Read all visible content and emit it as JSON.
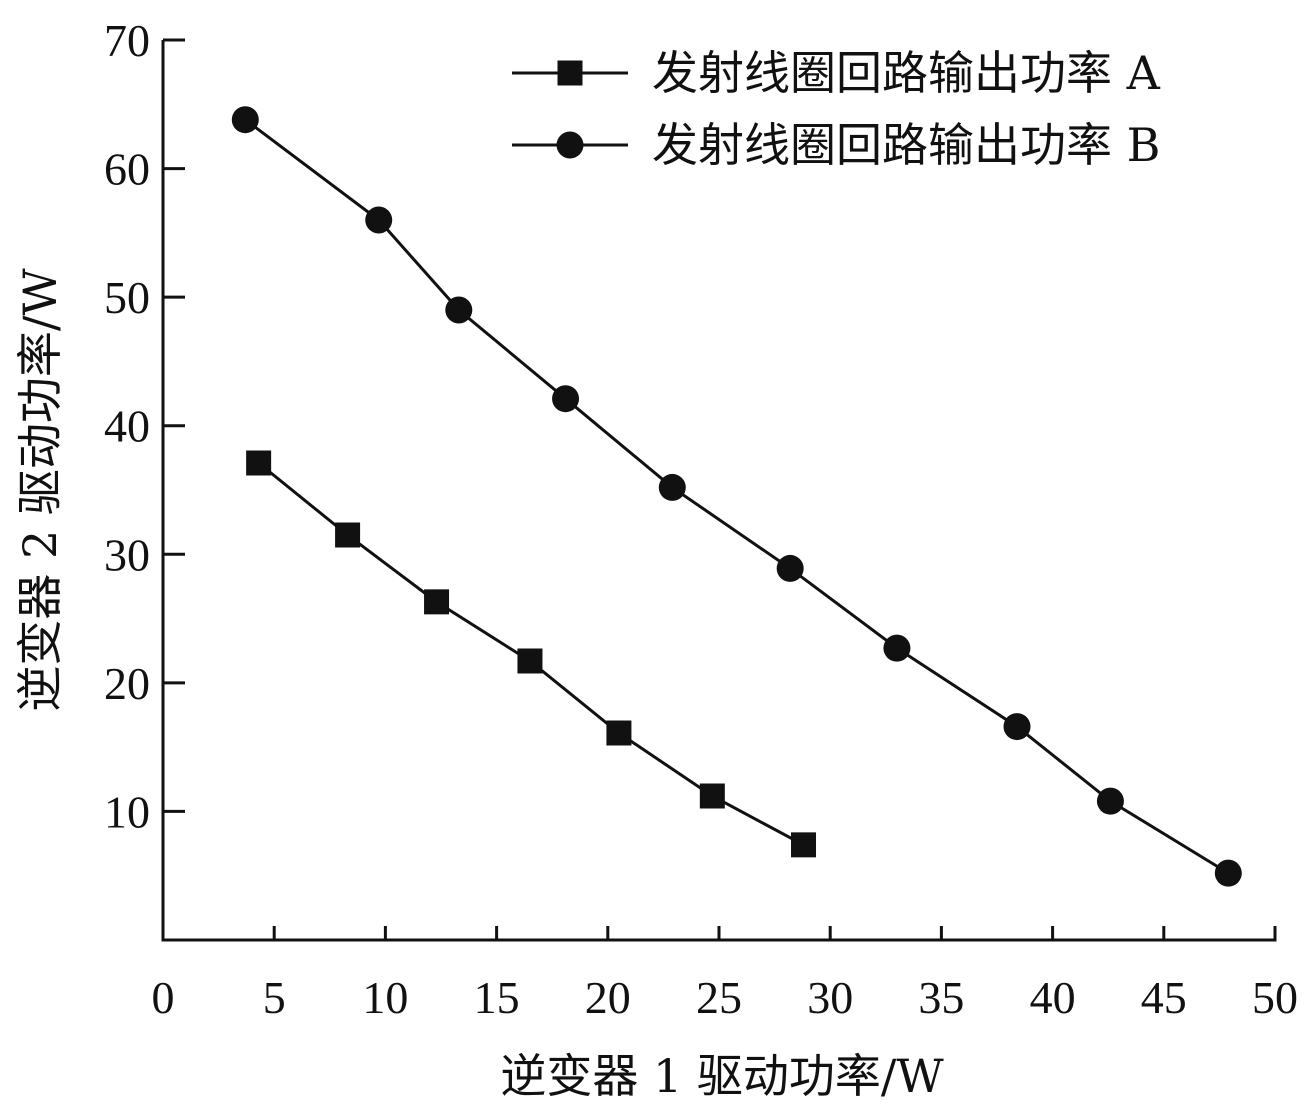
{
  "chart_data": {
    "type": "line",
    "xlabel": "逆变器 1 驱动功率/W",
    "ylabel": "逆变器 2 驱动功率/W",
    "xlim": [
      0,
      50
    ],
    "ylim": [
      0,
      70
    ],
    "x_ticks": [
      "0",
      "5",
      "10",
      "15",
      "20",
      "25",
      "30",
      "35",
      "40",
      "45",
      "50"
    ],
    "y_ticks": [
      "10",
      "20",
      "30",
      "40",
      "50",
      "60",
      "70"
    ],
    "grid": false,
    "legend_position": "top-right",
    "series": [
      {
        "name": "发射线圈回路输出功率 A",
        "marker": "square",
        "color": "#111111",
        "points": [
          [
            4.3,
            37.1
          ],
          [
            8.3,
            31.5
          ],
          [
            12.3,
            26.3
          ],
          [
            16.5,
            21.7
          ],
          [
            20.5,
            16.1
          ],
          [
            24.7,
            11.2
          ],
          [
            28.8,
            7.4
          ]
        ]
      },
      {
        "name": "发射线圈回路输出功率 B",
        "marker": "circle",
        "color": "#111111",
        "points": [
          [
            3.7,
            63.8
          ],
          [
            9.7,
            56.0
          ],
          [
            13.3,
            49.0
          ],
          [
            18.1,
            42.1
          ],
          [
            22.9,
            35.2
          ],
          [
            28.2,
            28.9
          ],
          [
            33.0,
            22.7
          ],
          [
            38.4,
            16.6
          ],
          [
            42.6,
            10.8
          ],
          [
            47.9,
            5.2
          ]
        ]
      }
    ]
  }
}
